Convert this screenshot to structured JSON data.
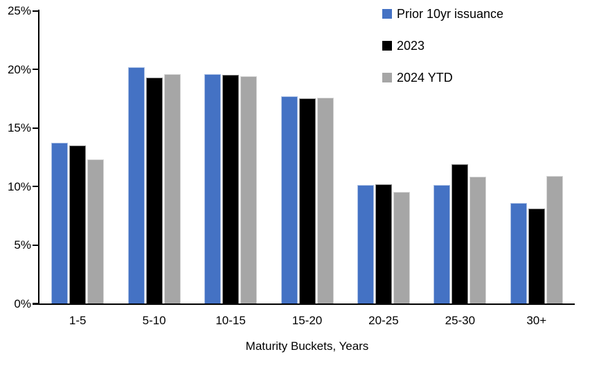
{
  "chart_data": {
    "type": "bar",
    "title": "",
    "xlabel": "Maturity Buckets, Years",
    "ylabel": "",
    "ylim": [
      0,
      25
    ],
    "yticks": [
      0,
      5,
      10,
      15,
      20,
      25
    ],
    "ytick_labels": [
      "0%",
      "5%",
      "10%",
      "15%",
      "20%",
      "25%"
    ],
    "categories": [
      "1-5",
      "5-10",
      "10-15",
      "15-20",
      "20-25",
      "25-30",
      "30+"
    ],
    "series": [
      {
        "name": "Prior 10yr issuance",
        "color": "#4472C4",
        "values": [
          13.7,
          20.2,
          19.6,
          17.7,
          10.1,
          10.1,
          8.6
        ]
      },
      {
        "name": "2023",
        "color": "#000000",
        "values": [
          13.5,
          19.3,
          19.5,
          17.5,
          10.2,
          11.9,
          8.1
        ]
      },
      {
        "name": "2024 YTD",
        "color": "#A6A6A6",
        "values": [
          12.3,
          19.6,
          19.4,
          17.6,
          9.5,
          10.8,
          10.9
        ]
      }
    ],
    "legend_position": "top-right",
    "grid": false,
    "axis_color": "#000000",
    "background_color": "#FFFFFF"
  }
}
